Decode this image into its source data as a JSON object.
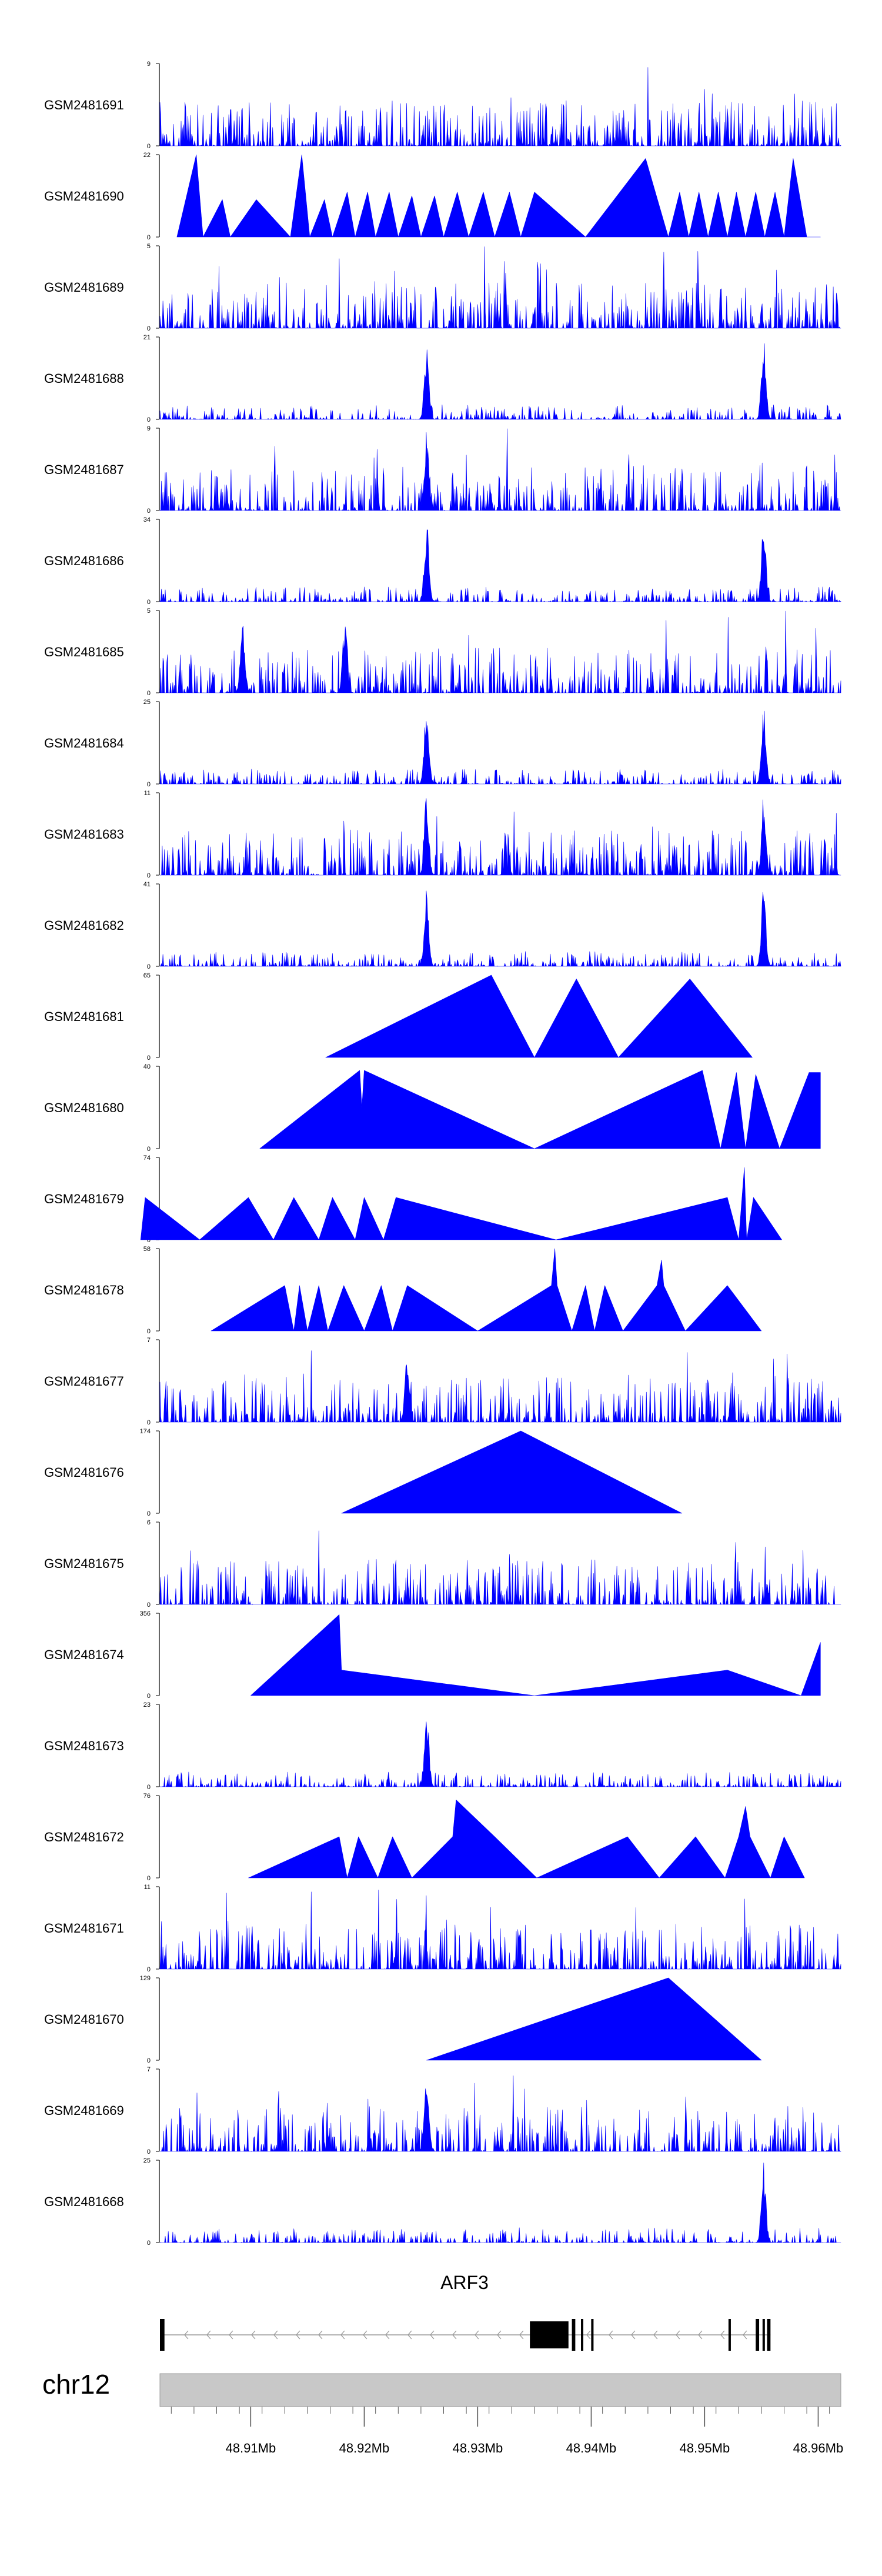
{
  "chart_data": {
    "type": "area",
    "title": "",
    "chromosome": "chr12",
    "xlabel": "",
    "ylabel": "",
    "x_range_mb": [
      48.902,
      48.962
    ],
    "genomic_ticks_mb": [
      48.91,
      48.92,
      48.93,
      48.94,
      48.95,
      48.96
    ],
    "genomic_tick_labels": [
      "48.91Mb",
      "48.92Mb",
      "48.93Mb",
      "48.94Mb",
      "48.95Mb",
      "48.96Mb"
    ],
    "gene": {
      "name": "ARF3",
      "strand": "-",
      "line_start_mb": 48.9021,
      "line_end_mb": 48.9558,
      "exons_mb": [
        [
          48.902,
          48.9024
        ],
        [
          48.9346,
          48.938
        ],
        [
          48.9383,
          48.9386
        ],
        [
          48.9391,
          48.9393
        ],
        [
          48.94,
          48.9402
        ],
        [
          48.9521,
          48.9523
        ],
        [
          48.9545,
          48.9548
        ],
        [
          48.9551,
          48.9553
        ],
        [
          48.9555,
          48.9558
        ]
      ]
    },
    "series": [
      {
        "name": "GSM2481691",
        "ymax": 9,
        "ylim": [
          0,
          9
        ],
        "style": "dense",
        "peaks": []
      },
      {
        "name": "GSM2481690",
        "ymax": 22,
        "ylim": [
          0,
          22
        ],
        "style": "sparse",
        "points": [
          [
            48.9035,
            0
          ],
          [
            48.9052,
            22
          ],
          [
            48.9058,
            0
          ],
          [
            48.9075,
            10
          ],
          [
            48.9082,
            0
          ],
          [
            48.9105,
            10
          ],
          [
            48.9135,
            0
          ],
          [
            48.9145,
            22
          ],
          [
            48.9152,
            0
          ],
          [
            48.9165,
            10
          ],
          [
            48.9172,
            0
          ],
          [
            48.9185,
            12
          ],
          [
            48.9192,
            0
          ],
          [
            48.9203,
            12
          ],
          [
            48.921,
            0
          ],
          [
            48.9222,
            12
          ],
          [
            48.923,
            0
          ],
          [
            48.9242,
            11
          ],
          [
            48.925,
            0
          ],
          [
            48.9262,
            11
          ],
          [
            48.927,
            0
          ],
          [
            48.9282,
            12
          ],
          [
            48.9292,
            0
          ],
          [
            48.9305,
            12
          ],
          [
            48.9315,
            0
          ],
          [
            48.9328,
            12
          ],
          [
            48.9338,
            0
          ],
          [
            48.935,
            12
          ],
          [
            48.9395,
            0
          ],
          [
            48.9448,
            21
          ],
          [
            48.9468,
            0
          ],
          [
            48.9478,
            12
          ],
          [
            48.9486,
            0
          ],
          [
            48.9495,
            12
          ],
          [
            48.9503,
            0
          ],
          [
            48.9512,
            12
          ],
          [
            48.952,
            0
          ],
          [
            48.9528,
            12
          ],
          [
            48.9536,
            0
          ],
          [
            48.9545,
            12
          ],
          [
            48.9553,
            0
          ],
          [
            48.9562,
            12
          ],
          [
            48.957,
            0
          ],
          [
            48.9578,
            21
          ],
          [
            48.959,
            0
          ],
          [
            48.9602,
            0
          ]
        ]
      },
      {
        "name": "GSM2481689",
        "ymax": 5,
        "ylim": [
          0,
          5
        ],
        "style": "dense",
        "peaks": []
      },
      {
        "name": "GSM2481688",
        "ymax": 21,
        "ylim": [
          0,
          21
        ],
        "style": "dense",
        "peaks": [
          48.9255,
          48.9552
        ]
      },
      {
        "name": "GSM2481687",
        "ymax": 9,
        "ylim": [
          0,
          9
        ],
        "style": "dense",
        "peaks": [
          48.9255
        ]
      },
      {
        "name": "GSM2481686",
        "ymax": 34,
        "ylim": [
          0,
          34
        ],
        "style": "dense",
        "peaks": [
          48.9255,
          48.9552
        ]
      },
      {
        "name": "GSM2481685",
        "ymax": 5,
        "ylim": [
          0,
          5
        ],
        "style": "dense",
        "peaks": [
          48.9093,
          48.9183
        ]
      },
      {
        "name": "GSM2481684",
        "ymax": 25,
        "ylim": [
          0,
          25
        ],
        "style": "dense",
        "peaks": [
          48.9255,
          48.9552
        ]
      },
      {
        "name": "GSM2481683",
        "ymax": 11,
        "ylim": [
          0,
          11
        ],
        "style": "dense",
        "peaks": [
          48.9255,
          48.9552
        ]
      },
      {
        "name": "GSM2481682",
        "ymax": 41,
        "ylim": [
          0,
          41
        ],
        "style": "dense",
        "peaks": [
          48.9255,
          48.9552
        ]
      },
      {
        "name": "GSM2481681",
        "ymax": 65,
        "ylim": [
          0,
          65
        ],
        "style": "sparse",
        "points": [
          [
            48.9166,
            0
          ],
          [
            48.9312,
            65
          ],
          [
            48.935,
            0
          ],
          [
            48.9387,
            62
          ],
          [
            48.9424,
            0
          ],
          [
            48.9487,
            62
          ],
          [
            48.9542,
            0
          ]
        ]
      },
      {
        "name": "GSM2481680",
        "ymax": 40,
        "ylim": [
          0,
          40
        ],
        "style": "sparse",
        "points": [
          [
            48.9108,
            0
          ],
          [
            48.9196,
            38
          ],
          [
            48.9198,
            20
          ],
          [
            48.92,
            38
          ],
          [
            48.935,
            0
          ],
          [
            48.9498,
            38
          ],
          [
            48.9514,
            0
          ],
          [
            48.9528,
            37
          ],
          [
            48.9536,
            0
          ],
          [
            48.9545,
            36
          ],
          [
            48.9566,
            0
          ],
          [
            48.9592,
            37
          ],
          [
            48.9602,
            37
          ]
        ]
      },
      {
        "name": "GSM2481679",
        "ymax": 74,
        "ylim": [
          0,
          74
        ],
        "style": "sparse",
        "points": [
          [
            48.9003,
            0
          ],
          [
            48.9007,
            38
          ],
          [
            48.9055,
            0
          ],
          [
            48.9098,
            38
          ],
          [
            48.912,
            0
          ],
          [
            48.9138,
            38
          ],
          [
            48.916,
            0
          ],
          [
            48.9172,
            38
          ],
          [
            48.9192,
            0
          ],
          [
            48.92,
            38
          ],
          [
            48.9217,
            0
          ],
          [
            48.9228,
            38
          ],
          [
            48.9369,
            0
          ],
          [
            48.952,
            38
          ],
          [
            48.953,
            0
          ],
          [
            48.9535,
            65
          ],
          [
            48.9537,
            0
          ],
          [
            48.9543,
            38
          ],
          [
            48.9568,
            0
          ]
        ]
      },
      {
        "name": "GSM2481678",
        "ymax": 58,
        "ylim": [
          0,
          58
        ],
        "style": "sparse",
        "points": [
          [
            48.9065,
            0
          ],
          [
            48.913,
            32
          ],
          [
            48.9138,
            0
          ],
          [
            48.9143,
            32
          ],
          [
            48.915,
            0
          ],
          [
            48.916,
            32
          ],
          [
            48.9168,
            0
          ],
          [
            48.9182,
            32
          ],
          [
            48.92,
            0
          ],
          [
            48.9215,
            32
          ],
          [
            48.9225,
            0
          ],
          [
            48.9238,
            32
          ],
          [
            48.93,
            0
          ],
          [
            48.9365,
            32
          ],
          [
            48.9368,
            58
          ],
          [
            48.937,
            32
          ],
          [
            48.9383,
            0
          ],
          [
            48.9395,
            32
          ],
          [
            48.9403,
            0
          ],
          [
            48.9412,
            32
          ],
          [
            48.9428,
            0
          ],
          [
            48.9458,
            32
          ],
          [
            48.9462,
            50
          ],
          [
            48.9464,
            32
          ],
          [
            48.9483,
            0
          ],
          [
            48.952,
            32
          ],
          [
            48.955,
            0
          ]
        ]
      },
      {
        "name": "GSM2481677",
        "ymax": 7,
        "ylim": [
          0,
          7
        ],
        "style": "dense",
        "peaks": [
          48.9238
        ]
      },
      {
        "name": "GSM2481676",
        "ymax": 174,
        "ylim": [
          0,
          174
        ],
        "style": "sparse",
        "points": [
          [
            48.918,
            0
          ],
          [
            48.9338,
            174
          ],
          [
            48.948,
            0
          ]
        ]
      },
      {
        "name": "GSM2481675",
        "ymax": 6,
        "ylim": [
          0,
          6
        ],
        "style": "dense",
        "peaks": []
      },
      {
        "name": "GSM2481674",
        "ymax": 356,
        "ylim": [
          0,
          356
        ],
        "style": "sparse",
        "points": [
          [
            48.91,
            0
          ],
          [
            48.9178,
            350
          ],
          [
            48.918,
            110
          ],
          [
            48.935,
            0
          ],
          [
            48.952,
            110
          ],
          [
            48.9585,
            0
          ],
          [
            48.9602,
            230
          ]
        ]
      },
      {
        "name": "GSM2481673",
        "ymax": 23,
        "ylim": [
          0,
          23
        ],
        "style": "dense",
        "peaks": [
          48.9255
        ]
      },
      {
        "name": "GSM2481672",
        "ymax": 76,
        "ylim": [
          0,
          76
        ],
        "style": "sparse",
        "points": [
          [
            48.9098,
            0
          ],
          [
            48.9178,
            38
          ],
          [
            48.9185,
            0
          ],
          [
            48.9195,
            38
          ],
          [
            48.9212,
            0
          ],
          [
            48.9225,
            38
          ],
          [
            48.9242,
            0
          ],
          [
            48.9278,
            38
          ],
          [
            48.9281,
            72
          ],
          [
            48.9315,
            38
          ],
          [
            48.9352,
            0
          ],
          [
            48.9432,
            38
          ],
          [
            48.946,
            0
          ],
          [
            48.9492,
            38
          ],
          [
            48.9518,
            0
          ],
          [
            48.953,
            38
          ],
          [
            48.9536,
            66
          ],
          [
            48.954,
            38
          ],
          [
            48.9558,
            0
          ],
          [
            48.957,
            38
          ],
          [
            48.9588,
            0
          ]
        ]
      },
      {
        "name": "GSM2481671",
        "ymax": 11,
        "ylim": [
          0,
          11
        ],
        "style": "dense",
        "peaks": []
      },
      {
        "name": "GSM2481670",
        "ymax": 129,
        "ylim": [
          0,
          129
        ],
        "style": "sparse",
        "points": [
          [
            48.9255,
            0
          ],
          [
            48.9468,
            129
          ],
          [
            48.955,
            0
          ]
        ]
      },
      {
        "name": "GSM2481669",
        "ymax": 7,
        "ylim": [
          0,
          7
        ],
        "style": "dense",
        "peaks": [
          48.9255
        ]
      },
      {
        "name": "GSM2481668",
        "ymax": 25,
        "ylim": [
          0,
          25
        ],
        "style": "dense",
        "peaks": [
          48.9552
        ]
      }
    ]
  }
}
